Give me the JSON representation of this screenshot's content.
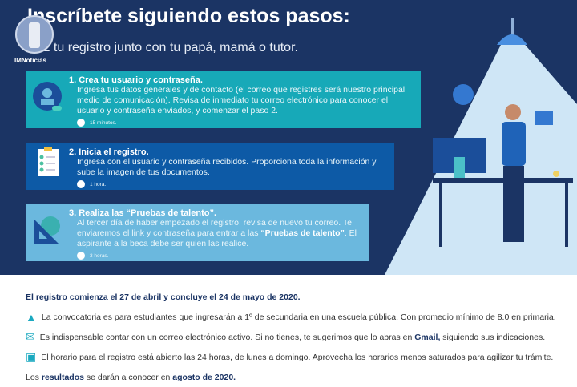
{
  "header": {
    "title": "Inscríbete siguiendo estos pasos:",
    "subtitle": "Haz tu registro junto con tu papá, mamá o tutor."
  },
  "logo": {
    "text": "IMNoticias"
  },
  "steps": [
    {
      "title": "1. Crea tu usuario y contraseña.",
      "text": "Ingresa tus datos generales y de contacto (el correo que registres será nuestro principal medio de comunicación). Revisa de inmediato tu correo electrónico para conocer el usuario y contraseña enviados, y comenzar el paso 2.",
      "time": "15 minutos.",
      "icon": "user-id-icon"
    },
    {
      "title": "2. Inicia el registro.",
      "text": "Ingresa con el usuario y contraseña recibidos. Proporciona toda la información y sube la imagen de tus documentos.",
      "time": "1 hora.",
      "icon": "clipboard-checklist-icon"
    },
    {
      "title": "3. Realiza las “Pruebas de talento”.",
      "text_a": "Al tercer día de haber empezado el registro, revisa de nuevo tu correo. Te enviaremos el link y contraseña para entrar a las ",
      "text_bold": "“Pruebas de talento”",
      "text_b": ". El aspirante a la beca debe ser quien las realice.",
      "time": "3 horas.",
      "icon": "set-square-protractor-icon"
    }
  ],
  "info": {
    "dates": "El registro comienza el 27 de abril y concluye el 24 de mayo de 2020.",
    "item1": "La convocatoria es para estudiantes que ingresarán a 1º de secundaria en una escuela pública. Con promedio mínimo de 8.0 en primaria.",
    "item2_a": "Es indispensable contar con un correo electrónico activo. Si no tienes, te sugerimos que lo abras en ",
    "item2_bold": "Gmail,",
    "item2_b": " siguiendo sus indicaciones.",
    "item3": "El horario para el registro está abierto las 24 horas, de lunes a domingo. Aprovecha los horarios menos saturados para agilizar tu trámite.",
    "results_a": "Los ",
    "results_bold1": "resultados",
    "results_b": " se darán a conocer en ",
    "results_bold2": "agosto de 2020."
  },
  "colors": {
    "navy": "#1b3464",
    "teal": "#17a9b8",
    "blue": "#0d5aa6",
    "light_blue": "#6bb8de",
    "accent": "#1ba9c0"
  }
}
